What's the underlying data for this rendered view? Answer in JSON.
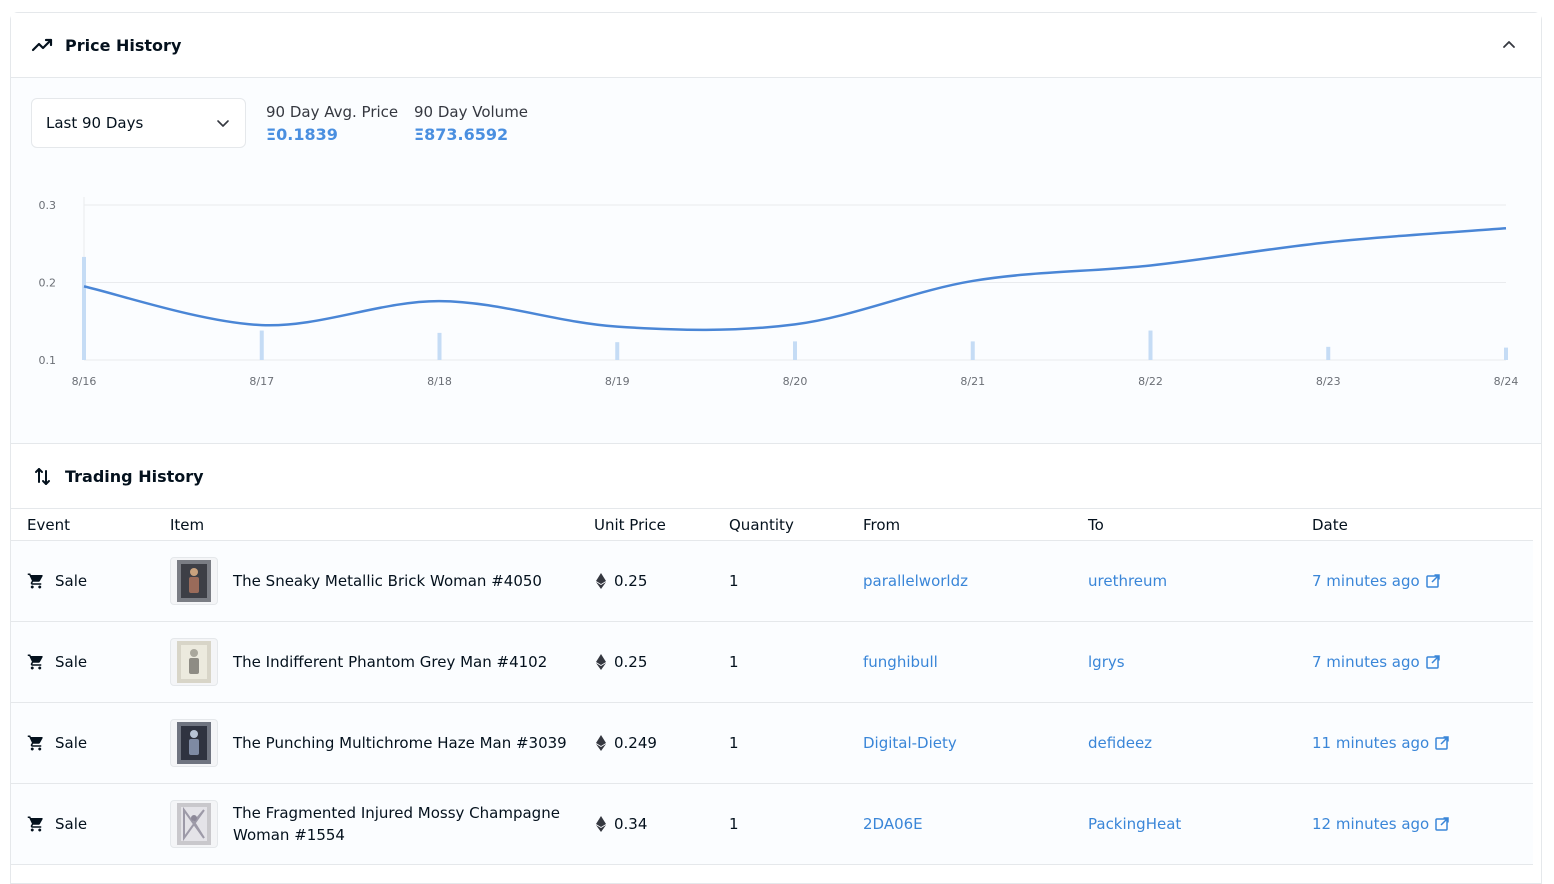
{
  "price_history": {
    "title": "Price History",
    "range": {
      "selected": "Last 90 Days"
    },
    "stats": [
      {
        "label": "90 Day Avg. Price",
        "value": "Ξ0.1839"
      },
      {
        "label": "90 Day Volume",
        "value": "Ξ873.6592"
      }
    ],
    "chart_data": {
      "type": "line",
      "x": [
        "8/16",
        "8/17",
        "8/18",
        "8/19",
        "8/20",
        "8/21",
        "8/22",
        "8/23",
        "8/24"
      ],
      "series": [
        {
          "values": [
            0.195,
            0.145,
            0.176,
            0.143,
            0.146,
            0.202,
            0.222,
            0.252,
            0.27
          ]
        }
      ],
      "volume_bars": [
        0.233,
        0.138,
        0.135,
        0.123,
        0.124,
        0.124,
        0.138,
        0.117,
        0.116
      ],
      "y_ticks": [
        "0.1",
        "0.2",
        "0.3"
      ],
      "ylim": [
        0.1,
        0.3
      ],
      "grid": true,
      "colors": {
        "line": "#4a86d6",
        "bars": "#c5dcf5"
      }
    }
  },
  "trading_history": {
    "title": "Trading History",
    "columns": [
      "Event",
      "Item",
      "Unit Price",
      "Quantity",
      "From",
      "To",
      "Date"
    ],
    "rows": [
      {
        "event": "Sale",
        "item": "The Sneaky Metallic Brick Woman #4050",
        "price": "0.25",
        "qty": "1",
        "from": "parallelworldz",
        "to": "urethreum",
        "date": "7 minutes ago"
      },
      {
        "event": "Sale",
        "item": "The Indifferent Phantom Grey Man #4102",
        "price": "0.25",
        "qty": "1",
        "from": "funghibull",
        "to": "lgrys",
        "date": "7 minutes ago"
      },
      {
        "event": "Sale",
        "item": "The Punching Multichrome Haze Man #3039",
        "price": "0.249",
        "qty": "1",
        "from": "Digital-Diety",
        "to": "defideez",
        "date": "11 minutes ago"
      },
      {
        "event": "Sale",
        "item": "The Fragmented Injured Mossy Champagne Woman #1554",
        "price": "0.34",
        "qty": "1",
        "from": "2DA06E",
        "to": "PackingHeat",
        "date": "12 minutes ago"
      }
    ]
  },
  "icons": {
    "price_history": "trending-up-icon",
    "collapse": "chevron-up-icon",
    "dropdown": "chevron-down-icon",
    "trading_history": "swap-vertical-icon",
    "event": "cart-icon",
    "price": "ethereum-icon",
    "date_link": "external-link-icon"
  }
}
